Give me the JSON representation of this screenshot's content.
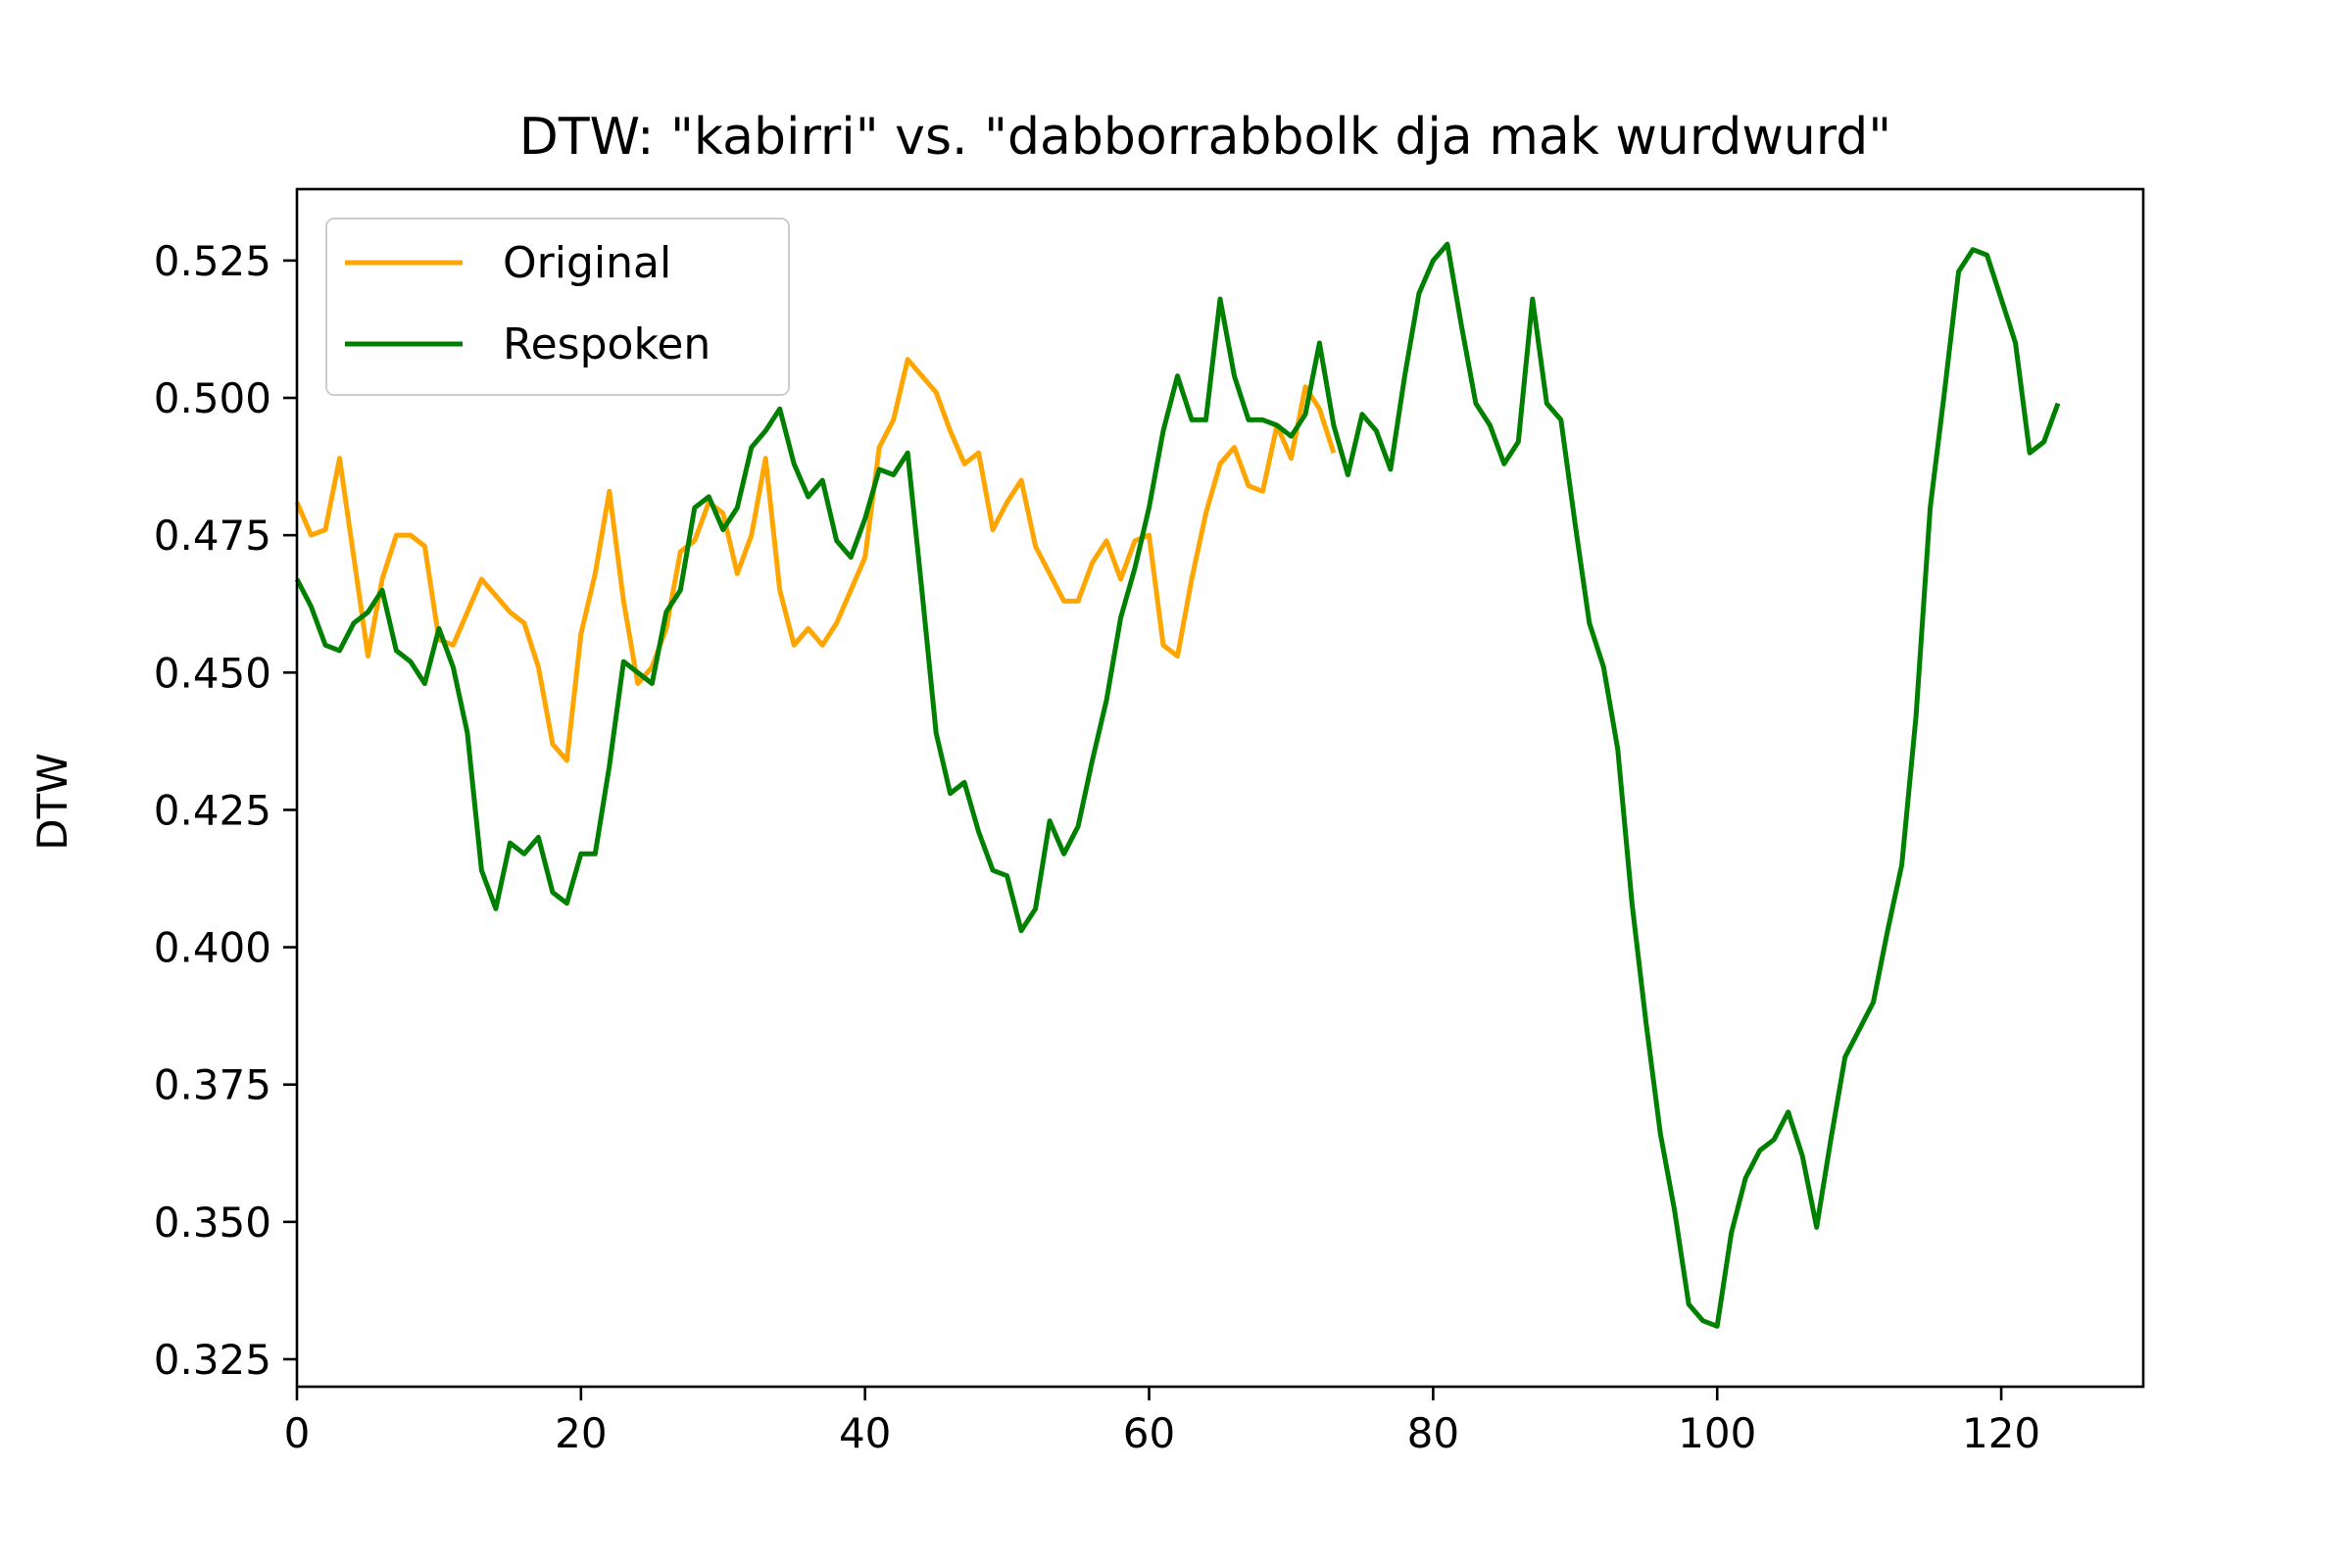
{
  "chart_data": {
    "type": "line",
    "title": "DTW: \"kabirri\" vs. \"dabborrabbolk dja mak wurdwurd\"",
    "xlabel": "",
    "ylabel": "DTW",
    "xlim": [
      0,
      130
    ],
    "ylim": [
      0.32,
      0.538
    ],
    "x_ticks": [
      0,
      20,
      40,
      60,
      80,
      100,
      120
    ],
    "y_ticks": [
      0.325,
      0.35,
      0.375,
      0.4,
      0.425,
      0.45,
      0.475,
      0.5,
      0.525
    ],
    "grid": false,
    "legend_position": "top-left",
    "series": [
      {
        "name": "Original",
        "color": "#FFA500",
        "values": [
          0.481,
          0.475,
          0.476,
          0.489,
          0.471,
          0.453,
          0.467,
          0.475,
          0.475,
          0.473,
          0.456,
          0.455,
          0.461,
          0.467,
          0.464,
          0.461,
          0.459,
          0.451,
          0.437,
          0.434,
          0.457,
          0.468,
          0.483,
          0.463,
          0.448,
          0.451,
          0.458,
          0.472,
          0.474,
          0.481,
          0.479,
          0.468,
          0.475,
          0.489,
          0.465,
          0.455,
          0.458,
          0.455,
          0.459,
          0.465,
          0.471,
          0.491,
          0.496,
          0.507,
          0.504,
          0.501,
          0.494,
          0.488,
          0.49,
          0.476,
          0.481,
          0.485,
          0.473,
          0.468,
          0.463,
          0.463,
          0.47,
          0.474,
          0.467,
          0.474,
          0.475,
          0.455,
          0.453,
          0.467,
          0.479,
          0.488,
          0.491,
          0.484,
          0.483,
          0.495,
          0.489,
          0.502,
          0.498,
          0.49
        ]
      },
      {
        "name": "Respoken",
        "color": "#008000",
        "values": [
          0.467,
          0.462,
          0.455,
          0.454,
          0.459,
          0.461,
          0.465,
          0.454,
          0.452,
          0.448,
          0.458,
          0.451,
          0.439,
          0.414,
          0.407,
          0.419,
          0.417,
          0.42,
          0.41,
          0.408,
          0.417,
          0.417,
          0.433,
          0.452,
          0.45,
          0.448,
          0.461,
          0.465,
          0.48,
          0.482,
          0.476,
          0.48,
          0.491,
          0.494,
          0.498,
          0.488,
          0.482,
          0.485,
          0.474,
          0.471,
          0.478,
          0.487,
          0.486,
          0.49,
          0.465,
          0.439,
          0.428,
          0.43,
          0.421,
          0.414,
          0.413,
          0.403,
          0.407,
          0.423,
          0.417,
          0.422,
          0.434,
          0.445,
          0.46,
          0.469,
          0.48,
          0.494,
          0.504,
          0.496,
          0.496,
          0.518,
          0.504,
          0.496,
          0.496,
          0.495,
          0.493,
          0.497,
          0.51,
          0.495,
          0.486,
          0.497,
          0.494,
          0.487,
          0.504,
          0.519,
          0.525,
          0.528,
          0.513,
          0.499,
          0.495,
          0.488,
          0.492,
          0.518,
          0.499,
          0.496,
          0.477,
          0.459,
          0.451,
          0.436,
          0.408,
          0.386,
          0.366,
          0.352,
          0.335,
          0.332,
          0.331,
          0.348,
          0.358,
          0.363,
          0.365,
          0.37,
          0.362,
          0.349,
          0.365,
          0.38,
          0.385,
          0.39,
          0.403,
          0.415,
          0.442,
          0.48,
          0.501,
          0.523,
          0.527,
          0.526,
          0.518,
          0.51,
          0.49,
          0.492,
          0.499
        ]
      }
    ]
  }
}
